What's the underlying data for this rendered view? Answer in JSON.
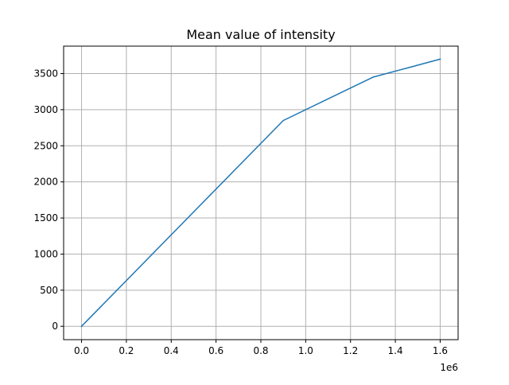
{
  "chart_data": {
    "type": "line",
    "title": "Mean value of intensity",
    "xlabel": "",
    "ylabel": "",
    "x_offset_label": "1e6",
    "xlim": [
      -0.08,
      1.68
    ],
    "ylim": [
      -185,
      3880
    ],
    "x_ticks": [
      0.0,
      0.2,
      0.4,
      0.6,
      0.8,
      1.0,
      1.2,
      1.4,
      1.6
    ],
    "x_tick_labels": [
      "0.0",
      "0.2",
      "0.4",
      "0.6",
      "0.8",
      "1.0",
      "1.2",
      "1.4",
      "1.6"
    ],
    "y_ticks": [
      0,
      500,
      1000,
      1500,
      2000,
      2500,
      3000,
      3500
    ],
    "y_tick_labels": [
      "0",
      "500",
      "1000",
      "1500",
      "2000",
      "2500",
      "3000",
      "3500"
    ],
    "grid": true,
    "series": [
      {
        "color": "#1f77b4",
        "x": [
          0.0,
          0.9,
          1.0,
          1.3,
          1.6
        ],
        "y": [
          0,
          2850,
          3000,
          3450,
          3700
        ]
      }
    ]
  }
}
